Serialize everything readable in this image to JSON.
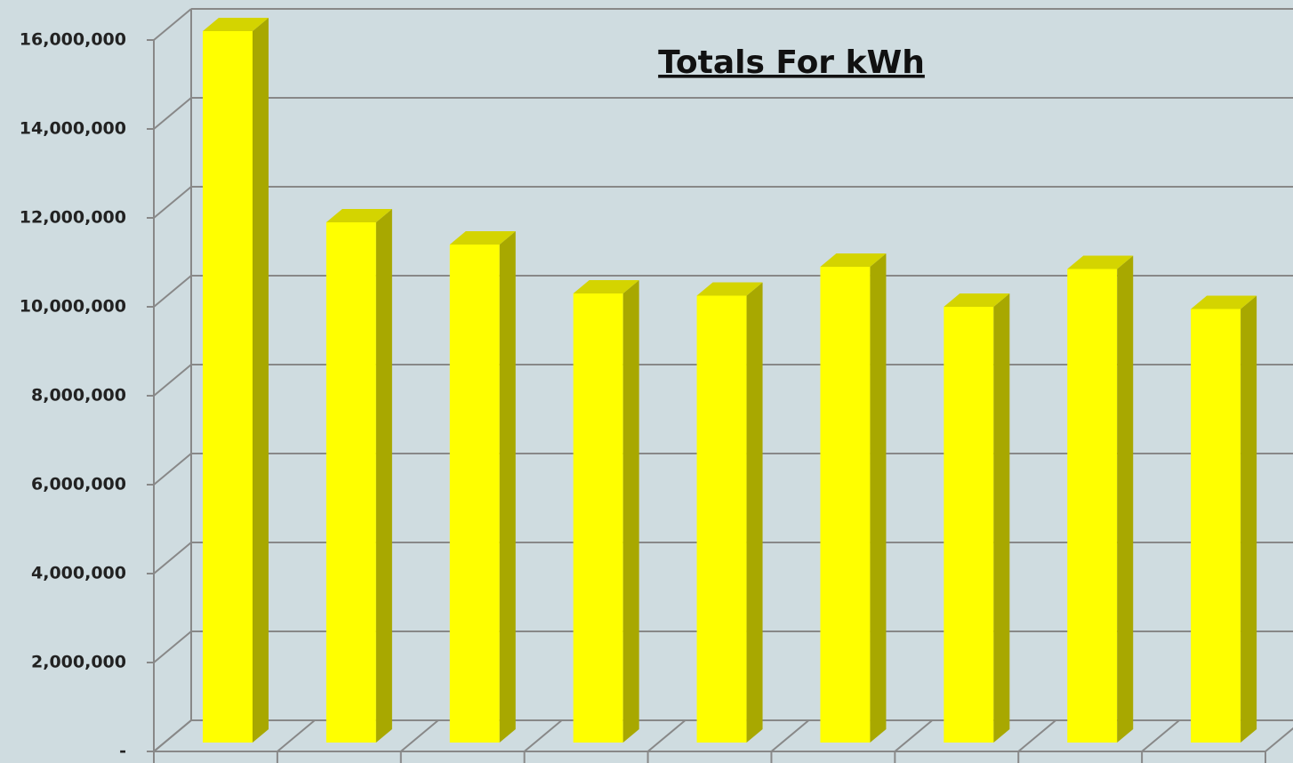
{
  "chart_data": {
    "type": "bar3d",
    "title": "Totals For kWh",
    "categories": [
      null,
      null,
      null,
      null,
      null,
      null,
      null,
      null,
      null
    ],
    "values": [
      16000000,
      11700000,
      11200000,
      10100000,
      10050000,
      10700000,
      9800000,
      10650000,
      9750000
    ],
    "color": "#ffff00",
    "side_color": "#a8a800",
    "top_color": "#d4d400",
    "ylim": [
      0,
      16000000
    ],
    "yticks": [
      {
        "value": 0,
        "label": "-"
      },
      {
        "value": 2000000,
        "label": "2,000,000"
      },
      {
        "value": 4000000,
        "label": "4,000,000"
      },
      {
        "value": 6000000,
        "label": "6,000,000"
      },
      {
        "value": 8000000,
        "label": "8,000,000"
      },
      {
        "value": 10000000,
        "label": "10,000,000"
      },
      {
        "value": 12000000,
        "label": "12,000,000"
      },
      {
        "value": 14000000,
        "label": "14,000,000"
      },
      {
        "value": 16000000,
        "label": "16,000,000"
      }
    ],
    "grid": true
  }
}
